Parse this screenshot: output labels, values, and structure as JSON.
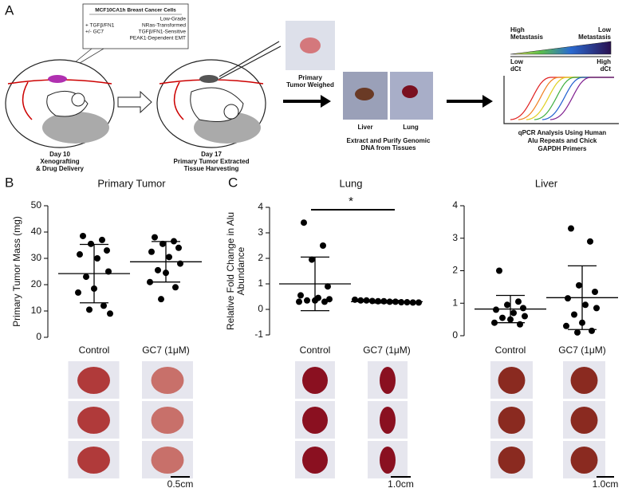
{
  "panels": {
    "a": "A",
    "b": "B",
    "c": "C"
  },
  "panel_a": {
    "box": {
      "title": "MCF10CA1h Breast Cancer Cells",
      "treatments": [
        "+ TGFβ/FN1",
        "+/- GC7"
      ],
      "properties": [
        "Low-Grade",
        "NRas-Transformed",
        "TGFβ/FN1-Sensitive",
        "PEAK1-Dependent EMT"
      ]
    },
    "day10": [
      "Day 10",
      "Xenografting",
      "& Drug Delivery"
    ],
    "day17": [
      "Day 17",
      "Primary Tumor Extracted",
      "Tissue Harvesting"
    ],
    "weigh": [
      "Primary",
      "Tumor Weighed"
    ],
    "tissues": [
      "Liver",
      "Lung"
    ],
    "extract": [
      "Extract and Purify Genomic",
      "DNA from Tissues"
    ],
    "gradient": {
      "left": [
        "High",
        "Metastasis"
      ],
      "right": [
        "Low",
        "Metastasis"
      ],
      "left_dct": [
        "Low",
        "dCt"
      ],
      "right_dct": [
        "High",
        "dCt"
      ]
    },
    "qpcr": [
      "qPCR Analysis Using Human",
      "Alu Repeats and Chick",
      "GAPDH Primers"
    ]
  },
  "chart_data": [
    {
      "type": "scatter",
      "title": "Primary Tumor",
      "ylabel": [
        "Primary Tumor Mass (mg)"
      ],
      "categories": [
        "Control",
        "GC7 (1μM)"
      ],
      "points": [
        [
          38.5,
          37,
          35.5,
          33,
          31.5,
          30,
          25,
          23,
          18.5,
          17,
          12,
          10.5,
          9
        ],
        [
          38,
          36.5,
          35.5,
          34,
          32.5,
          30.5,
          28,
          25.5,
          24.5,
          21,
          19,
          14.5
        ]
      ],
      "mean": [
        24.2,
        28.7
      ],
      "error": [
        11.1,
        7.7
      ],
      "color": "#000000",
      "ylim": [
        0,
        50
      ],
      "yticks": [
        0,
        10,
        20,
        30,
        40,
        50
      ],
      "scale_bar": "0.5cm"
    },
    {
      "type": "scatter",
      "title": "Lung",
      "ylabel": [
        "Relative Fold Change in Alu",
        "Abundance"
      ],
      "categories": [
        "Control",
        "GC7 (1μM)"
      ],
      "points": [
        [
          3.4,
          2.5,
          1.95,
          0.9,
          0.55,
          0.45,
          0.4,
          0.35,
          0.35,
          0.3,
          0.3
        ],
        [
          0.38,
          0.35,
          0.35,
          0.33,
          0.32,
          0.32,
          0.3,
          0.3,
          0.28,
          0.28,
          0.27,
          0.27
        ]
      ],
      "mean": [
        1.0,
        0.3
      ],
      "error": [
        1.05,
        0.05
      ],
      "color": "#000000",
      "ylim": [
        -1,
        4
      ],
      "yticks": [
        -1,
        0,
        1,
        2,
        3,
        4
      ],
      "annotation": "*",
      "scale_bar": "1.0cm"
    },
    {
      "type": "scatter",
      "title": "Liver",
      "categories": [
        "Control",
        "GC7 (1μM)"
      ],
      "points": [
        [
          2.0,
          1.05,
          0.95,
          0.85,
          0.8,
          0.7,
          0.6,
          0.55,
          0.5,
          0.4,
          0.35
        ],
        [
          3.3,
          2.9,
          1.55,
          1.35,
          1.15,
          0.95,
          0.85,
          0.65,
          0.4,
          0.3,
          0.15,
          0.1
        ]
      ],
      "mean": [
        0.82,
        1.17
      ],
      "error": [
        0.42,
        0.98
      ],
      "color": "#000000",
      "ylim": [
        0,
        4
      ],
      "yticks": [
        0,
        1,
        2,
        3,
        4
      ],
      "scale_bar": "1.0cm"
    }
  ]
}
